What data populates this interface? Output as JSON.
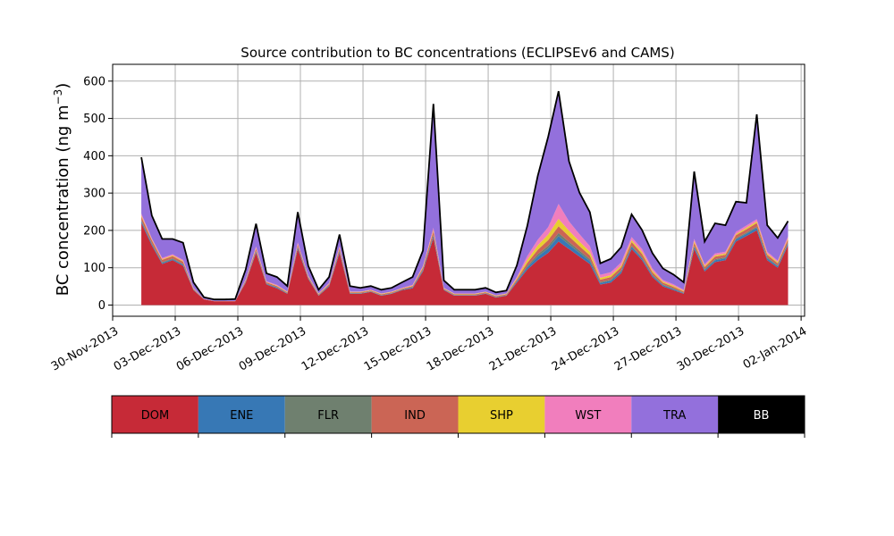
{
  "chart_data": {
    "type": "area",
    "title": "Source contribution to BC concentrations (ECLIPSEv6 and CAMS)",
    "ylabel": "BC concentration (ng m",
    "ylabel_sup": "−3",
    "ylabel_close": ")",
    "xlabel": "",
    "ylim": [
      -30,
      645
    ],
    "yticks": [
      0,
      100,
      200,
      300,
      400,
      500,
      600
    ],
    "xlim": [
      "2013-11-30T00:00",
      "2014-01-02T04:00"
    ],
    "xticks": [
      "30-Nov-2013",
      "03-Dec-2013",
      "06-Dec-2013",
      "09-Dec-2013",
      "12-Dec-2013",
      "15-Dec-2013",
      "18-Dec-2013",
      "21-Dec-2013",
      "24-Dec-2013",
      "27-Dec-2013",
      "30-Dec-2013",
      "02-Jan-2014"
    ],
    "grid": true,
    "x": [
      "2013-12-01T09:00",
      "2013-12-01T21:00",
      "2013-12-02T09:00",
      "2013-12-02T21:00",
      "2013-12-03T09:00",
      "2013-12-03T21:00",
      "2013-12-04T09:00",
      "2013-12-04T21:00",
      "2013-12-05T09:00",
      "2013-12-05T21:00",
      "2013-12-06T09:00",
      "2013-12-06T21:00",
      "2013-12-07T09:00",
      "2013-12-07T21:00",
      "2013-12-08T09:00",
      "2013-12-08T21:00",
      "2013-12-09T09:00",
      "2013-12-09T21:00",
      "2013-12-10T09:00",
      "2013-12-10T21:00",
      "2013-12-11T09:00",
      "2013-12-11T21:00",
      "2013-12-12T09:00",
      "2013-12-12T21:00",
      "2013-12-13T09:00",
      "2013-12-13T21:00",
      "2013-12-14T09:00",
      "2013-12-14T21:00",
      "2013-12-15T09:00",
      "2013-12-15T21:00",
      "2013-12-16T09:00",
      "2013-12-16T21:00",
      "2013-12-17T09:00",
      "2013-12-17T21:00",
      "2013-12-18T09:00",
      "2013-12-18T21:00",
      "2013-12-19T09:00",
      "2013-12-19T21:00",
      "2013-12-20T09:00",
      "2013-12-20T21:00",
      "2013-12-21T09:00",
      "2013-12-21T21:00",
      "2013-12-22T09:00",
      "2013-12-22T21:00",
      "2013-12-23T09:00",
      "2013-12-23T21:00",
      "2013-12-24T09:00",
      "2013-12-24T21:00",
      "2013-12-25T09:00",
      "2013-12-25T21:00",
      "2013-12-26T09:00",
      "2013-12-26T21:00",
      "2013-12-27T09:00",
      "2013-12-27T21:00",
      "2013-12-28T09:00",
      "2013-12-28T21:00",
      "2013-12-29T09:00",
      "2013-12-29T21:00",
      "2013-12-30T09:00",
      "2013-12-30T21:00",
      "2013-12-31T09:00",
      "2013-12-31T21:00",
      "2014-01-01T09:00"
    ],
    "series": [
      {
        "name": "DOM",
        "color": "#c62a37",
        "values": [
          220,
          160,
          110,
          120,
          105,
          40,
          15,
          10,
          10,
          10,
          60,
          140,
          55,
          45,
          30,
          150,
          70,
          25,
          50,
          140,
          30,
          30,
          35,
          25,
          30,
          40,
          45,
          90,
          180,
          40,
          25,
          25,
          25,
          30,
          20,
          25,
          60,
          95,
          120,
          140,
          170,
          150,
          130,
          110,
          55,
          60,
          85,
          150,
          120,
          75,
          50,
          40,
          30,
          150,
          90,
          115,
          120,
          170,
          185,
          200,
          120,
          100,
          160
        ]
      },
      {
        "name": "ENE",
        "color": "#3778b5",
        "values": [
          5,
          4,
          3,
          3,
          3,
          1,
          0,
          0,
          0,
          0,
          2,
          3,
          2,
          2,
          1,
          4,
          2,
          1,
          2,
          4,
          1,
          1,
          1,
          1,
          1,
          1,
          2,
          3,
          5,
          1,
          1,
          1,
          1,
          1,
          1,
          1,
          3,
          6,
          10,
          12,
          15,
          12,
          10,
          8,
          4,
          5,
          5,
          6,
          5,
          4,
          3,
          3,
          2,
          6,
          4,
          5,
          5,
          6,
          6,
          7,
          5,
          4,
          5
        ]
      },
      {
        "name": "FLR",
        "color": "#6f806f",
        "values": [
          2,
          2,
          2,
          2,
          2,
          1,
          0,
          0,
          0,
          0,
          1,
          2,
          1,
          1,
          1,
          2,
          1,
          1,
          1,
          2,
          1,
          1,
          1,
          1,
          1,
          1,
          1,
          2,
          3,
          1,
          1,
          1,
          1,
          1,
          1,
          1,
          2,
          4,
          6,
          7,
          8,
          7,
          6,
          5,
          3,
          3,
          3,
          3,
          3,
          2,
          2,
          2,
          1,
          3,
          2,
          3,
          3,
          3,
          3,
          3,
          3,
          2,
          3
        ]
      },
      {
        "name": "IND",
        "color": "#cb6555",
        "values": [
          10,
          8,
          6,
          6,
          6,
          2,
          1,
          1,
          1,
          1,
          3,
          6,
          3,
          3,
          2,
          6,
          3,
          2,
          3,
          6,
          2,
          2,
          2,
          2,
          2,
          2,
          3,
          5,
          10,
          2,
          2,
          2,
          2,
          2,
          2,
          2,
          4,
          8,
          12,
          15,
          18,
          15,
          12,
          10,
          6,
          7,
          8,
          10,
          9,
          7,
          5,
          4,
          3,
          8,
          6,
          7,
          7,
          8,
          9,
          10,
          7,
          6,
          8
        ]
      },
      {
        "name": "SHP",
        "color": "#e8cf30",
        "values": [
          3,
          2,
          2,
          2,
          2,
          1,
          0,
          0,
          0,
          0,
          1,
          2,
          1,
          1,
          1,
          2,
          1,
          1,
          1,
          2,
          1,
          1,
          1,
          1,
          1,
          1,
          1,
          2,
          3,
          1,
          1,
          1,
          1,
          1,
          1,
          1,
          3,
          8,
          12,
          15,
          20,
          15,
          12,
          10,
          5,
          5,
          5,
          5,
          5,
          4,
          3,
          3,
          2,
          4,
          3,
          3,
          3,
          3,
          4,
          4,
          3,
          3,
          3
        ]
      },
      {
        "name": "WST",
        "color": "#f17ebd",
        "values": [
          5,
          3,
          3,
          3,
          3,
          1,
          0,
          0,
          0,
          0,
          2,
          4,
          2,
          2,
          1,
          4,
          2,
          1,
          2,
          4,
          1,
          1,
          1,
          1,
          1,
          1,
          2,
          3,
          6,
          1,
          1,
          1,
          1,
          1,
          1,
          1,
          3,
          10,
          15,
          20,
          40,
          25,
          20,
          15,
          8,
          8,
          8,
          8,
          8,
          6,
          4,
          4,
          3,
          6,
          4,
          5,
          5,
          6,
          6,
          6,
          5,
          4,
          5
        ]
      },
      {
        "name": "TRA",
        "color": "#9370dc",
        "values": [
          150,
          60,
          50,
          40,
          45,
          15,
          5,
          4,
          4,
          5,
          25,
          60,
          20,
          20,
          15,
          80,
          25,
          10,
          15,
          30,
          15,
          10,
          10,
          10,
          10,
          15,
          20,
          40,
          330,
          20,
          10,
          10,
          10,
          10,
          8,
          8,
          30,
          80,
          170,
          240,
          300,
          160,
          110,
          90,
          30,
          35,
          40,
          60,
          50,
          40,
          30,
          25,
          20,
          180,
          60,
          80,
          70,
          80,
          60,
          280,
          70,
          60,
          40
        ]
      },
      {
        "name": "BB",
        "color": "#000000",
        "values": [
          1,
          1,
          1,
          1,
          1,
          0,
          0,
          0,
          0,
          0,
          1,
          1,
          1,
          1,
          0,
          1,
          1,
          0,
          1,
          1,
          0,
          0,
          0,
          0,
          0,
          0,
          1,
          1,
          2,
          0,
          0,
          0,
          0,
          0,
          0,
          0,
          1,
          1,
          1,
          2,
          2,
          1,
          1,
          1,
          1,
          1,
          1,
          1,
          1,
          1,
          1,
          1,
          0,
          1,
          1,
          1,
          1,
          1,
          1,
          1,
          1,
          1,
          1
        ]
      }
    ]
  }
}
